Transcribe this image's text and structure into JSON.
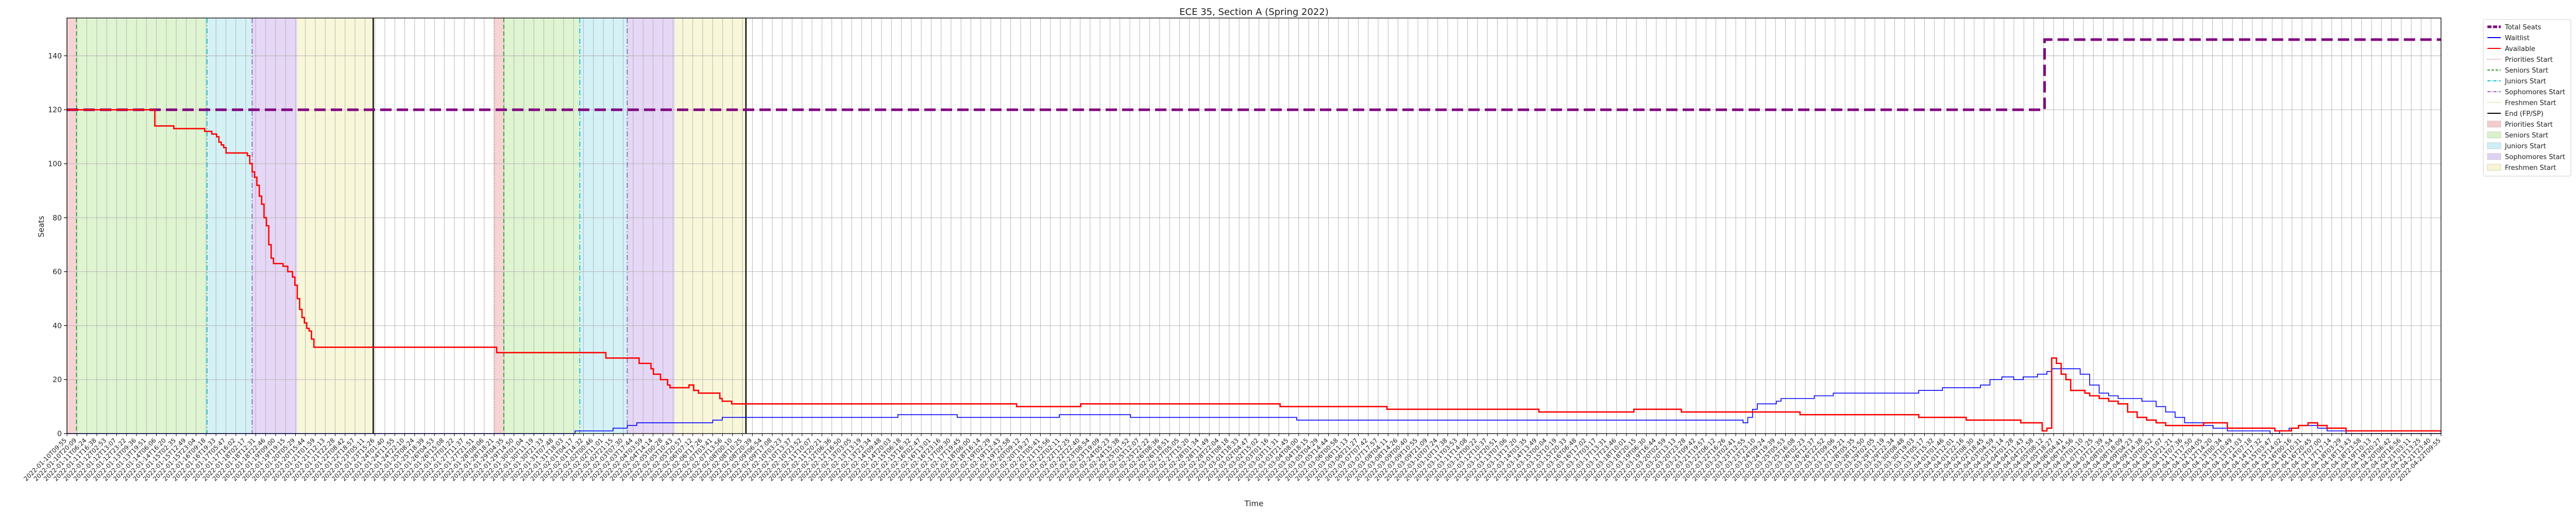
{
  "chart_data": {
    "type": "line",
    "title": "ECE 35, Section A (Spring 2022)",
    "xlabel": "Time",
    "ylabel": "Seats",
    "ylim": [
      0,
      154
    ],
    "yticks": [
      0,
      20,
      40,
      60,
      80,
      100,
      120,
      140
    ],
    "grid": true,
    "legend_position": "outside-right",
    "x_tick_count": 240,
    "x_tick_label_example": "2022-01-10T09:55",
    "legend": [
      {
        "label": "Total Seats",
        "kind": "line",
        "color": "#800080",
        "dash": "dashed-thick"
      },
      {
        "label": "Waitlist",
        "kind": "line",
        "color": "#0000ff",
        "dash": "solid"
      },
      {
        "label": "Available",
        "kind": "line",
        "color": "#ff0000",
        "dash": "solid"
      },
      {
        "label": "Priorities Start",
        "kind": "line",
        "color": "#d98c8c",
        "dash": "dotted"
      },
      {
        "label": "Seniors Start",
        "kind": "line",
        "color": "#2ca02c",
        "dash": "dashed"
      },
      {
        "label": "Juniors Start",
        "kind": "line",
        "color": "#17becf",
        "dash": "dashdot"
      },
      {
        "label": "Sophomores Start",
        "kind": "line",
        "color": "#9467bd",
        "dash": "dashdot"
      },
      {
        "label": "Freshmen Start",
        "kind": "line",
        "color": "#d4d488",
        "dash": "dotted"
      },
      {
        "label": "End (FP/SP)",
        "kind": "line",
        "color": "#000000",
        "dash": "solid"
      },
      {
        "label": "Priorities Start",
        "kind": "patch",
        "color": "#f4cccc"
      },
      {
        "label": "Seniors Start",
        "kind": "patch",
        "color": "#d9f2c9"
      },
      {
        "label": "Juniors Start",
        "kind": "patch",
        "color": "#cdeef5"
      },
      {
        "label": "Sophomores Start",
        "kind": "patch",
        "color": "#e0d0f3"
      },
      {
        "label": "Freshmen Start",
        "kind": "patch",
        "color": "#f8f6d2"
      }
    ],
    "x_range": [
      0,
      1000
    ],
    "phases": [
      {
        "name": "Priorities",
        "start": 0,
        "end": 4,
        "color": "#f4cccc"
      },
      {
        "name": "Seniors",
        "start": 4,
        "end": 59,
        "color": "#d9f2c9"
      },
      {
        "name": "Juniors",
        "start": 59,
        "end": 78,
        "color": "#cdeef5"
      },
      {
        "name": "Sophomores",
        "start": 78,
        "end": 97,
        "color": "#e0d0f3"
      },
      {
        "name": "Freshmen",
        "start": 97,
        "end": 129,
        "color": "#f8f6d2"
      },
      {
        "name": "Priorities",
        "start": 180,
        "end": 184,
        "color": "#f4cccc"
      },
      {
        "name": "Seniors",
        "start": 184,
        "end": 216,
        "color": "#d9f2c9"
      },
      {
        "name": "Juniors",
        "start": 216,
        "end": 236,
        "color": "#cdeef5"
      },
      {
        "name": "Sophomores",
        "start": 236,
        "end": 256,
        "color": "#e0d0f3"
      },
      {
        "name": "Freshmen",
        "start": 256,
        "end": 286,
        "color": "#f8f6d2"
      }
    ],
    "phase_lines": [
      {
        "kind": "Priorities Start",
        "x": 0,
        "color": "#d98c8c",
        "dash": "2,3"
      },
      {
        "kind": "Seniors Start",
        "x": 4,
        "color": "#2ca02c",
        "dash": "8,5"
      },
      {
        "kind": "Juniors Start",
        "x": 59,
        "color": "#17becf",
        "dash": "10,4,2,4"
      },
      {
        "kind": "Sophomores Start",
        "x": 78,
        "color": "#9467bd",
        "dash": "10,4,2,4"
      },
      {
        "kind": "End (FP/SP)",
        "x": 129,
        "color": "#000000",
        "dash": ""
      },
      {
        "kind": "Priorities Start",
        "x": 180,
        "color": "#d98c8c",
        "dash": "2,3"
      },
      {
        "kind": "Seniors Start",
        "x": 184,
        "color": "#2ca02c",
        "dash": "8,5"
      },
      {
        "kind": "Juniors Start",
        "x": 216,
        "color": "#17becf",
        "dash": "10,4,2,4"
      },
      {
        "kind": "Sophomores Start",
        "x": 236,
        "color": "#9467bd",
        "dash": "10,4,2,4"
      },
      {
        "kind": "End (FP/SP)",
        "x": 286,
        "color": "#000000",
        "dash": ""
      }
    ],
    "series": [
      {
        "name": "Total Seats",
        "color": "#800080",
        "x": [
          0,
          833,
          833,
          1000
        ],
        "values": [
          120,
          120,
          146,
          146
        ]
      },
      {
        "name": "Waitlist",
        "color": "#0000ff",
        "x": [
          0,
          210,
          214,
          230,
          236,
          240,
          245,
          260,
          268,
          272,
          276,
          300,
          320,
          330,
          350,
          360,
          375,
          400,
          418,
          448,
          500,
          518,
          548,
          640,
          700,
          706,
          708,
          710,
          712,
          716,
          720,
          722,
          728,
          732,
          736,
          740,
          744,
          760,
          780,
          790,
          800,
          806,
          810,
          815,
          820,
          824,
          830,
          834,
          836,
          840,
          844,
          848,
          852,
          856,
          860,
          864,
          868,
          874,
          880,
          884,
          888,
          892,
          900,
          904,
          910,
          922,
          928,
          932,
          936,
          940,
          944,
          948,
          952,
          960,
          980,
          1000
        ],
        "values": [
          0,
          0,
          1,
          2,
          3,
          4,
          4,
          4,
          4,
          5,
          6,
          6,
          6,
          6,
          7,
          7,
          6,
          6,
          7,
          6,
          6,
          5,
          5,
          5,
          5,
          4,
          6,
          9,
          11,
          11,
          12,
          13,
          13,
          13,
          14,
          14,
          15,
          15,
          16,
          17,
          17,
          18,
          20,
          21,
          20,
          21,
          22,
          23,
          24,
          24,
          24,
          22,
          18,
          15,
          14,
          13,
          13,
          12,
          10,
          8,
          6,
          4,
          3,
          2,
          1,
          1,
          0,
          1,
          2,
          3,
          3,
          2,
          1,
          0,
          0,
          0
        ]
      },
      {
        "name": "Available",
        "color": "#ff0000",
        "x": [
          0,
          36,
          37,
          44,
          45,
          58,
          61,
          63,
          64,
          65,
          66,
          67,
          75,
          76,
          77,
          78,
          79,
          80,
          81,
          82,
          83,
          84,
          85,
          86,
          87,
          89,
          91,
          93,
          95,
          96,
          97,
          98,
          99,
          100,
          101,
          102,
          103,
          104,
          105,
          106,
          107,
          108,
          109,
          110,
          111,
          112,
          180,
          181,
          226,
          227,
          240,
          241,
          246,
          247,
          250,
          253,
          254,
          258,
          262,
          264,
          266,
          275,
          276,
          280,
          400,
          426,
          427,
          510,
          511,
          555,
          556,
          570,
          571,
          600,
          620,
          640,
          660,
          680,
          700,
          702,
          730,
          746,
          780,
          800,
          823,
          832,
          833,
          834,
          835,
          836,
          838,
          840,
          842,
          844,
          850,
          852,
          856,
          860,
          864,
          868,
          872,
          876,
          880,
          884,
          892,
          900,
          910,
          930,
          933,
          937,
          940,
          944,
          948,
          952,
          960,
          1000
        ],
        "values": [
          120,
          120,
          114,
          114,
          113,
          112,
          111,
          110,
          108,
          107,
          106,
          104,
          104,
          103,
          100,
          97,
          95,
          92,
          88,
          85,
          80,
          77,
          70,
          65,
          63,
          63,
          62,
          60,
          58,
          55,
          50,
          46,
          43,
          41,
          39,
          38,
          35,
          32,
          32,
          32,
          32,
          32,
          32,
          32,
          32,
          32,
          32,
          30,
          30,
          28,
          28,
          26,
          24,
          22,
          20,
          18,
          17,
          17,
          18,
          16,
          15,
          13,
          12,
          11,
          10,
          10,
          11,
          11,
          10,
          10,
          9,
          9,
          9,
          9,
          8,
          8,
          9,
          8,
          8,
          8,
          7,
          7,
          6,
          5,
          4,
          1,
          1,
          2,
          2,
          28,
          26,
          22,
          20,
          16,
          15,
          14,
          13,
          12,
          11,
          8,
          6,
          5,
          4,
          3,
          3,
          4,
          2,
          1,
          1,
          2,
          3,
          4,
          3,
          2,
          1,
          1
        ]
      }
    ]
  }
}
